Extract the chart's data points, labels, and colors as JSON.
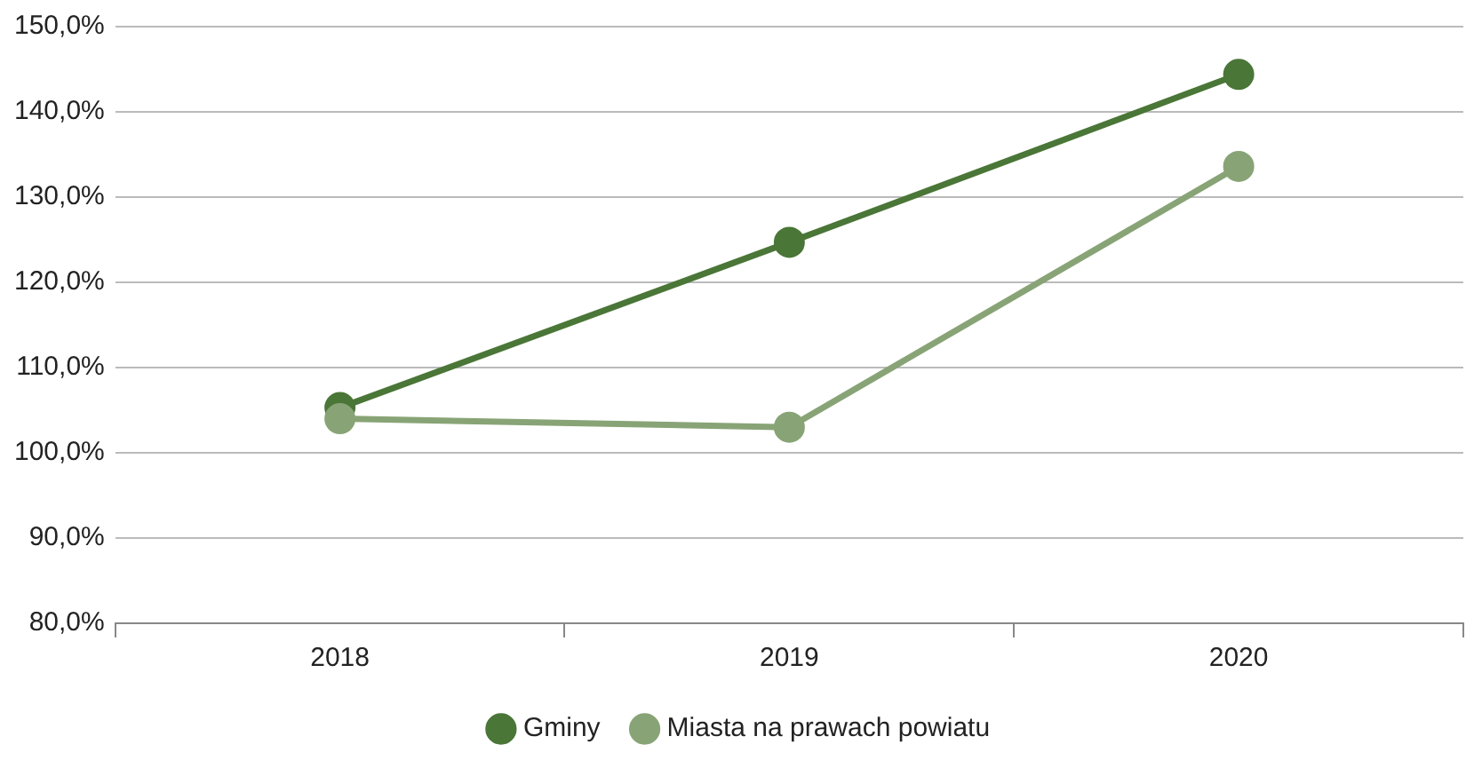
{
  "chart_data": {
    "type": "line",
    "categories": [
      "2018",
      "2019",
      "2020"
    ],
    "series": [
      {
        "name": "Gminy",
        "color": "#4a7637",
        "values": [
          105.3,
          124.7,
          144.4
        ]
      },
      {
        "name": "Miasta na prawach powiatu",
        "color": "#88a476",
        "values": [
          104.0,
          103.0,
          133.6
        ]
      }
    ],
    "ylim": [
      80,
      150
    ],
    "yticks": [
      {
        "value": 80,
        "label": "80,0%"
      },
      {
        "value": 90,
        "label": "90,0%"
      },
      {
        "value": 100,
        "label": "100,0%"
      },
      {
        "value": 110,
        "label": "110,0%"
      },
      {
        "value": 120,
        "label": "120,0%"
      },
      {
        "value": 130,
        "label": "130,0%"
      },
      {
        "value": 140,
        "label": "140,0%"
      },
      {
        "value": 150,
        "label": "150,0%"
      }
    ],
    "grid": "y",
    "legend": "bottom",
    "marker": "circle",
    "line_style": "solid"
  }
}
